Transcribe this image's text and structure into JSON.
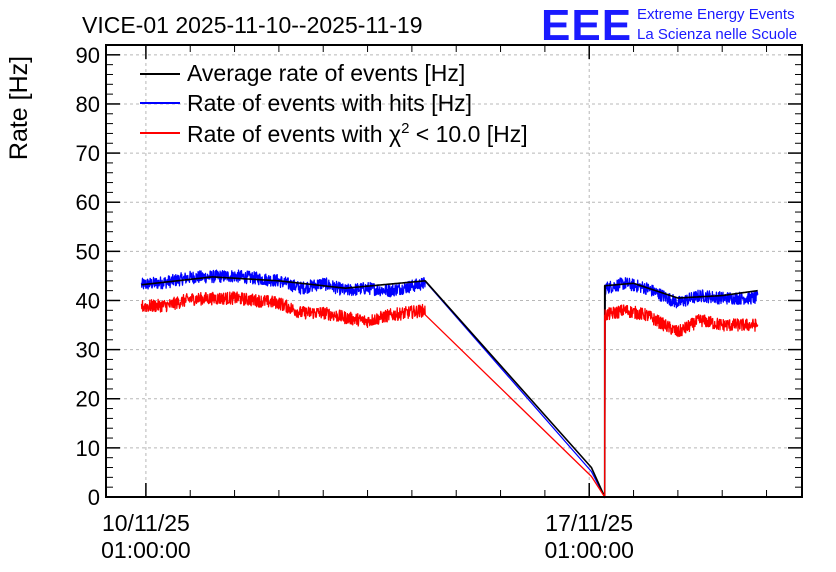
{
  "chart_data": {
    "type": "line",
    "title": "VICE-01 2025-11-10--2025-11-19",
    "ylabel": "Rate [Hz]",
    "xlabel": "",
    "ylim": [
      0,
      92
    ],
    "yticks": [
      0,
      10,
      20,
      30,
      40,
      50,
      60,
      70,
      80,
      90
    ],
    "xlim_days": [
      -0.9,
      14.8
    ],
    "xticks": [
      {
        "day": 0,
        "date": "10/11/25",
        "time": "01:00:00"
      },
      {
        "day": 10,
        "date": "17/11/25",
        "time": "01:00:00"
      }
    ],
    "grid": true,
    "legend_position": "top-left",
    "series": [
      {
        "name": "Average rate of events [Hz]",
        "color": "#000000",
        "points": [
          [
            -0.1,
            43.2
          ],
          [
            1.5,
            44.8
          ],
          [
            3.0,
            44.0
          ],
          [
            4.5,
            42.5
          ],
          [
            6.3,
            44.0
          ],
          [
            10.05,
            6.0
          ],
          [
            10.35,
            0.0
          ],
          [
            10.35,
            43.0
          ],
          [
            11.0,
            43.5
          ],
          [
            12.0,
            40.5
          ],
          [
            13.0,
            41.0
          ],
          [
            13.8,
            42.0
          ]
        ]
      },
      {
        "name": "Rate of events with hits [Hz]",
        "color": "#0000ff",
        "points": [
          [
            -0.1,
            43.2
          ],
          [
            0.5,
            43.8
          ],
          [
            1.0,
            44.7
          ],
          [
            2.0,
            45.0
          ],
          [
            3.0,
            44.0
          ],
          [
            3.5,
            42.5
          ],
          [
            4.0,
            43.5
          ],
          [
            4.5,
            42.0
          ],
          [
            5.0,
            42.5
          ],
          [
            5.5,
            42.0
          ],
          [
            6.3,
            43.5
          ],
          [
            10.05,
            5.2
          ],
          [
            10.35,
            0.0
          ],
          [
            10.35,
            42.5
          ],
          [
            10.8,
            43.5
          ],
          [
            11.3,
            42.5
          ],
          [
            12.0,
            39.5
          ],
          [
            12.5,
            41.0
          ],
          [
            13.0,
            40.5
          ],
          [
            13.8,
            40.5
          ]
        ],
        "noise": 1.3
      },
      {
        "name": "Rate of events with χ² < 10.0 [Hz]",
        "color": "#ff0000",
        "points": [
          [
            -0.1,
            38.8
          ],
          [
            0.5,
            39.0
          ],
          [
            1.0,
            40.3
          ],
          [
            2.0,
            40.5
          ],
          [
            3.0,
            39.5
          ],
          [
            3.5,
            37.5
          ],
          [
            4.0,
            37.5
          ],
          [
            4.5,
            36.5
          ],
          [
            5.0,
            35.8
          ],
          [
            5.5,
            37.0
          ],
          [
            6.3,
            38.0
          ],
          [
            10.05,
            4.2
          ],
          [
            10.35,
            0.0
          ],
          [
            10.35,
            37.0
          ],
          [
            10.8,
            38.0
          ],
          [
            11.3,
            37.0
          ],
          [
            12.0,
            33.5
          ],
          [
            12.5,
            36.0
          ],
          [
            13.0,
            35.0
          ],
          [
            13.8,
            35.0
          ]
        ],
        "noise": 1.3
      }
    ],
    "legend_label_main": "Rate of events with χ",
    "legend_label_sup": "2",
    "legend_label_tail": " < 10.0 [Hz]"
  },
  "logo": {
    "mark": "EEE",
    "line1": "Extreme Energy Events",
    "line2": "La Scienza nelle Scuole"
  }
}
